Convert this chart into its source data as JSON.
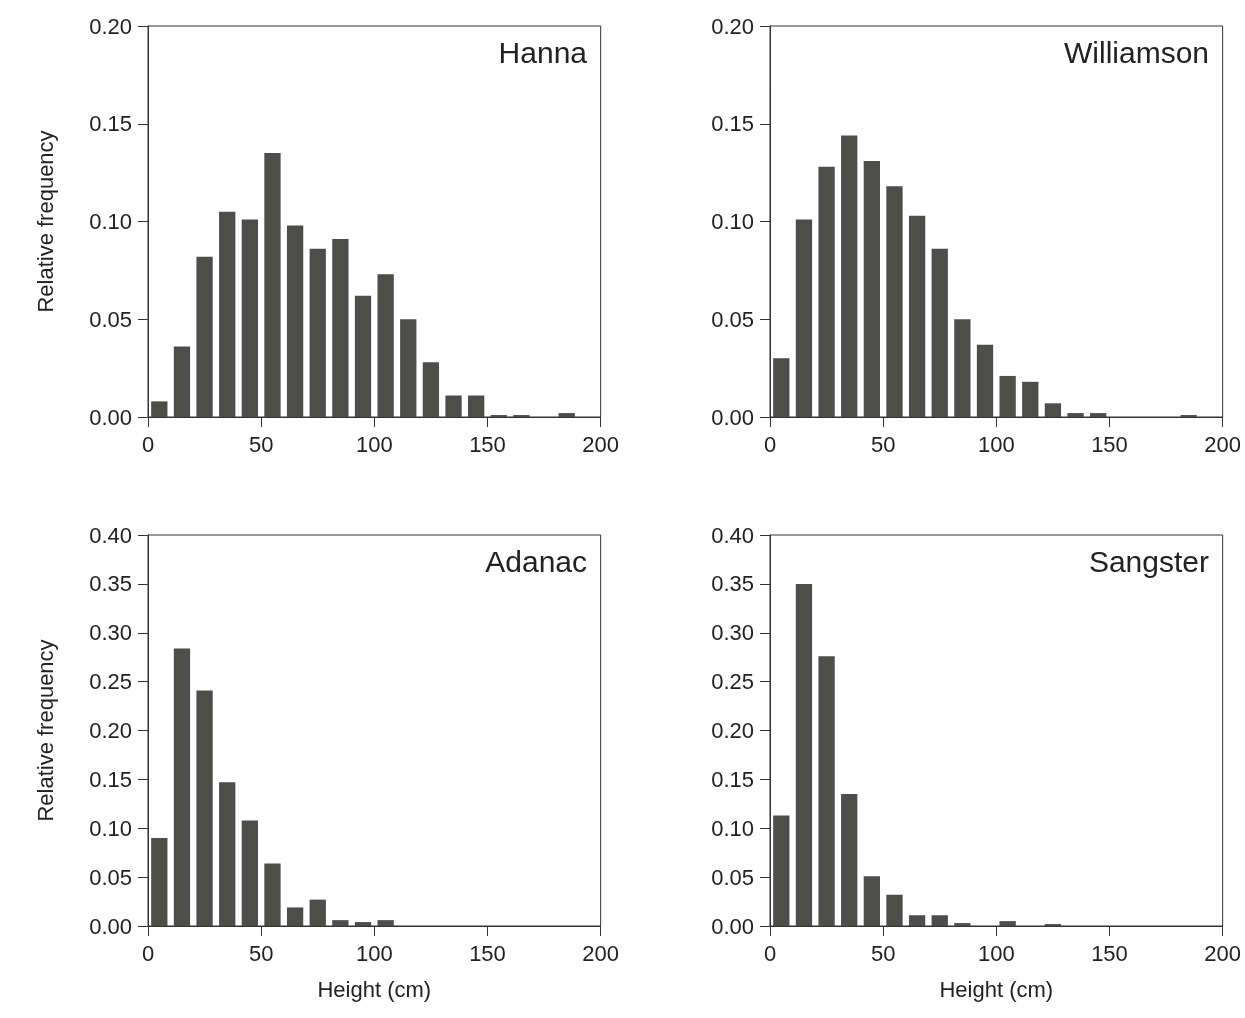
{
  "chart_data": [
    {
      "type": "histogram",
      "title": "Hanna",
      "ylabel": "Relative frequency",
      "color": "#4d4d4b",
      "bins": [
        0,
        10,
        20,
        30,
        40,
        50,
        60,
        70,
        80,
        90,
        100,
        110,
        120,
        130,
        140,
        150,
        160,
        170,
        180,
        190,
        200
      ],
      "values": [
        0.008,
        0.036,
        0.082,
        0.105,
        0.101,
        0.135,
        0.098,
        0.086,
        0.091,
        0.062,
        0.073,
        0.05,
        0.028,
        0.011,
        0.011,
        0.001,
        0.001,
        0,
        0.002,
        0
      ],
      "xlim": [
        0,
        200
      ],
      "xticks": [
        0,
        50,
        100,
        150,
        200
      ],
      "ylim": [
        0,
        0.2
      ],
      "yticks": [
        {
          "value": 0,
          "label": "0.00"
        },
        {
          "value": 0.05,
          "label": "0.05"
        },
        {
          "value": 0.1,
          "label": "0.10"
        },
        {
          "value": 0.15,
          "label": "0.15"
        },
        {
          "value": 0.2,
          "label": "0.20"
        }
      ],
      "grid": false
    },
    {
      "type": "histogram",
      "title": "Williamson",
      "color": "#4d4d4b",
      "bins": [
        0,
        10,
        20,
        30,
        40,
        50,
        60,
        70,
        80,
        90,
        100,
        110,
        120,
        130,
        140,
        150,
        160,
        170,
        180,
        190,
        200
      ],
      "values": [
        0.03,
        0.101,
        0.128,
        0.144,
        0.131,
        0.118,
        0.103,
        0.086,
        0.05,
        0.037,
        0.021,
        0.018,
        0.007,
        0.002,
        0.002,
        0,
        0,
        0,
        0.001,
        0
      ],
      "xlim": [
        0,
        200
      ],
      "xticks": [
        0,
        50,
        100,
        150,
        200
      ],
      "ylim": [
        0,
        0.2
      ],
      "yticks": [
        {
          "value": 0,
          "label": "0.00"
        },
        {
          "value": 0.05,
          "label": "0.05"
        },
        {
          "value": 0.1,
          "label": "0.10"
        },
        {
          "value": 0.15,
          "label": "0.15"
        },
        {
          "value": 0.2,
          "label": "0.20"
        }
      ],
      "grid": false
    },
    {
      "type": "histogram",
      "title": "Adanac",
      "ylabel": "Relative frequency",
      "xlabel": "Height (cm)",
      "color": "#4d4d4b",
      "bins": [
        0,
        10,
        20,
        30,
        40,
        50,
        60,
        70,
        80,
        90,
        100,
        110,
        120,
        130,
        140,
        150,
        160,
        170,
        180,
        190,
        200
      ],
      "values": [
        0.09,
        0.284,
        0.241,
        0.147,
        0.108,
        0.064,
        0.019,
        0.027,
        0.006,
        0.004,
        0.006,
        0,
        0,
        0,
        0,
        0,
        0,
        0,
        0,
        0
      ],
      "xlim": [
        0,
        200
      ],
      "xticks": [
        0,
        50,
        100,
        150,
        200
      ],
      "ylim": [
        0,
        0.4
      ],
      "yticks": [
        {
          "value": 0,
          "label": "0.00"
        },
        {
          "value": 0.05,
          "label": "0.05"
        },
        {
          "value": 0.1,
          "label": "0.10"
        },
        {
          "value": 0.15,
          "label": "0.15"
        },
        {
          "value": 0.2,
          "label": "0.20"
        },
        {
          "value": 0.25,
          "label": "0.25"
        },
        {
          "value": 0.3,
          "label": "0.30"
        },
        {
          "value": 0.35,
          "label": "0.35"
        },
        {
          "value": 0.4,
          "label": "0.40"
        }
      ],
      "grid": false
    },
    {
      "type": "histogram",
      "title": "Sangster",
      "xlabel": "Height (cm)",
      "color": "#4d4d4b",
      "bins": [
        0,
        10,
        20,
        30,
        40,
        50,
        60,
        70,
        80,
        90,
        100,
        110,
        120,
        130,
        140,
        150,
        160,
        170,
        180,
        190,
        200
      ],
      "values": [
        0.113,
        0.35,
        0.276,
        0.135,
        0.051,
        0.032,
        0.011,
        0.011,
        0.003,
        0,
        0.005,
        0,
        0.002,
        0,
        0,
        0,
        0,
        0,
        0,
        0
      ],
      "xlim": [
        0,
        200
      ],
      "xticks": [
        0,
        50,
        100,
        150,
        200
      ],
      "ylim": [
        0,
        0.4
      ],
      "yticks": [
        {
          "value": 0,
          "label": "0.00"
        },
        {
          "value": 0.05,
          "label": "0.05"
        },
        {
          "value": 0.1,
          "label": "0.10"
        },
        {
          "value": 0.15,
          "label": "0.15"
        },
        {
          "value": 0.2,
          "label": "0.20"
        },
        {
          "value": 0.25,
          "label": "0.25"
        },
        {
          "value": 0.3,
          "label": "0.30"
        },
        {
          "value": 0.35,
          "label": "0.35"
        },
        {
          "value": 0.4,
          "label": "0.40"
        }
      ],
      "grid": false
    }
  ]
}
